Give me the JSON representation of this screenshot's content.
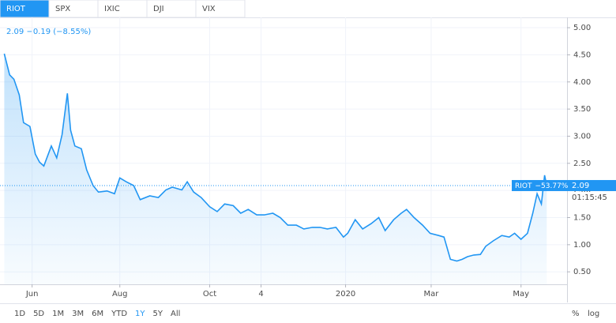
{
  "tabs": [
    "RIOT",
    "SPX",
    "IXIC",
    "DJI",
    "VIX"
  ],
  "ranges": [
    "1D",
    "5D",
    "1M",
    "3M",
    "6M",
    "YTD",
    "1Y",
    "5Y",
    "All"
  ],
  "scale_options": [
    "%",
    "log"
  ],
  "chart_data": {
    "type": "line",
    "header": "2.09 −0.19 (−8.55%)",
    "x": [
      0.4,
      0.9,
      1.3,
      1.8,
      2.2,
      2.8,
      3.3,
      3.7,
      4.1,
      4.8,
      5.3,
      5.8,
      6.3,
      6.6,
      7.0,
      7.6,
      8.1,
      8.7,
      9.2,
      10.0,
      10.7,
      11.2,
      11.8,
      12.5,
      13.1,
      14.0,
      14.8,
      15.5,
      16.1,
      17.0,
      17.5,
      18.1,
      18.8,
      19.6,
      20.3,
      21.0,
      21.8,
      22.5,
      23.2,
      24.0,
      24.7,
      25.5,
      26.2,
      26.9,
      27.7,
      28.4,
      29.2,
      29.9,
      30.6,
      31.4,
      32.1,
      32.5,
      33.2,
      33.9,
      34.7,
      35.4,
      36.0,
      36.8,
      37.5,
      38.0,
      38.7,
      39.5,
      40.2,
      41.0,
      41.5,
      42.1,
      42.7,
      43.2,
      43.7,
      44.3,
      44.9,
      45.4,
      46.1,
      46.9,
      47.6,
      48.1,
      48.7,
      49.3,
      49.8,
      50.2,
      50.6,
      50.9,
      51.1
    ],
    "series": [
      {
        "name": "RIOT",
        "color": "#2196f3",
        "values": [
          4.52,
          4.13,
          4.05,
          3.76,
          3.25,
          3.18,
          2.67,
          2.52,
          2.45,
          2.82,
          2.6,
          3.03,
          3.79,
          3.11,
          2.82,
          2.77,
          2.38,
          2.09,
          1.97,
          1.99,
          1.94,
          2.23,
          2.16,
          2.09,
          1.83,
          1.9,
          1.87,
          2.01,
          2.06,
          2.01,
          2.16,
          1.97,
          1.87,
          1.7,
          1.61,
          1.75,
          1.72,
          1.58,
          1.65,
          1.55,
          1.55,
          1.58,
          1.5,
          1.36,
          1.36,
          1.29,
          1.32,
          1.32,
          1.29,
          1.32,
          1.14,
          1.21,
          1.46,
          1.29,
          1.39,
          1.5,
          1.26,
          1.46,
          1.58,
          1.65,
          1.5,
          1.36,
          1.21,
          1.17,
          1.14,
          0.73,
          0.7,
          0.73,
          0.78,
          0.81,
          0.82,
          0.97,
          1.07,
          1.17,
          1.14,
          1.21,
          1.1,
          1.21,
          1.58,
          1.94,
          1.75,
          2.28,
          2.09
        ]
      }
    ],
    "xlim": [
      0,
      53
    ],
    "xticks": [
      {
        "value": 3.0,
        "label": "Jun"
      },
      {
        "value": 11.2,
        "label": "Aug"
      },
      {
        "value": 19.6,
        "label": "Oct"
      },
      {
        "value": 24.4,
        "label": "4"
      },
      {
        "value": 32.3,
        "label": "2020"
      },
      {
        "value": 40.3,
        "label": "Mar"
      },
      {
        "value": 48.7,
        "label": "May"
      }
    ],
    "ylim": [
      0.27,
      5.19
    ],
    "yticks": [
      {
        "value": 0.5,
        "label": "0.50"
      },
      {
        "value": 1,
        "label": "1.00"
      },
      {
        "value": 1.5,
        "label": "1.50"
      },
      {
        "value": 2,
        "label": "2.00"
      },
      {
        "value": 2.5,
        "label": "2.50"
      },
      {
        "value": 3,
        "label": "3.00"
      },
      {
        "value": 3.5,
        "label": "3.50"
      },
      {
        "value": 4,
        "label": "4.00"
      },
      {
        "value": 4.5,
        "label": "4.50"
      },
      {
        "value": 5,
        "label": "5.00"
      }
    ],
    "grid": true,
    "last_price": 2.09,
    "price_change": "−53.77%",
    "countdown": "01:15:45"
  }
}
